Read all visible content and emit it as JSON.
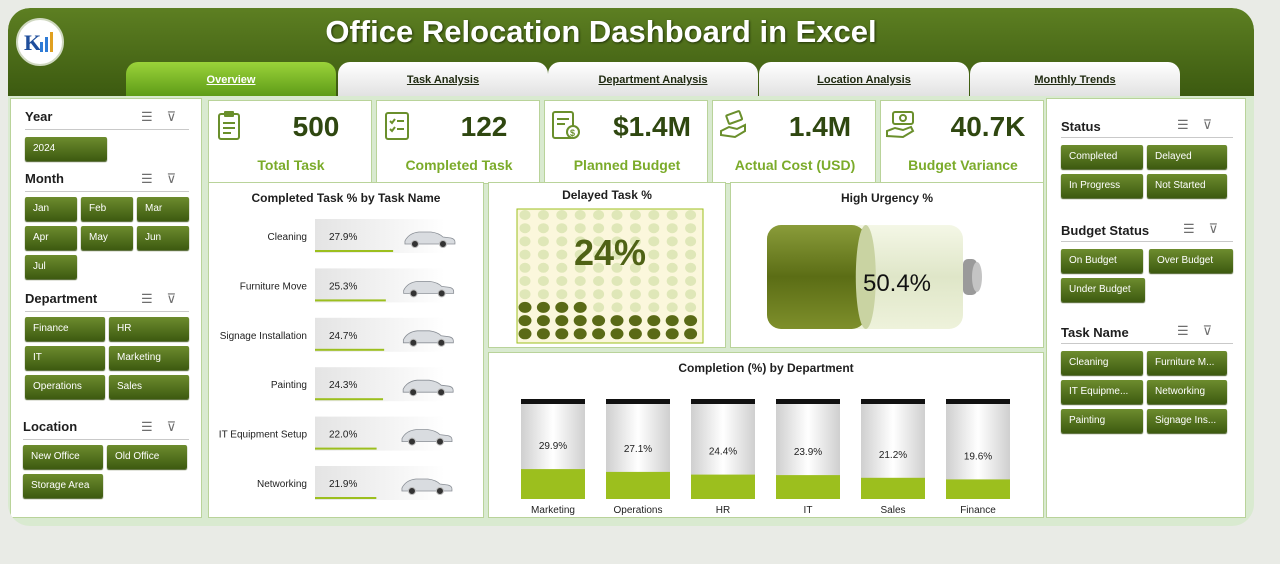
{
  "app": {
    "title": "Office Relocation Dashboard in Excel"
  },
  "tabs": [
    "Overview",
    "Task Analysis",
    "Department Analysis",
    "Location Analysis",
    "Monthly Trends"
  ],
  "left_slicers": {
    "year": {
      "title": "Year",
      "items": [
        "2024"
      ]
    },
    "month": {
      "title": "Month",
      "items": [
        "Jan",
        "Feb",
        "Mar",
        "Apr",
        "May",
        "Jun",
        "Jul"
      ]
    },
    "department": {
      "title": "Department",
      "items": [
        "Finance",
        "HR",
        "IT",
        "Marketing",
        "Operations",
        "Sales"
      ]
    },
    "location": {
      "title": "Location",
      "items": [
        "New Office",
        "Old Office",
        "Storage Area"
      ]
    }
  },
  "right_slicers": {
    "status": {
      "title": "Status",
      "items": [
        "Completed",
        "Delayed",
        "In Progress",
        "Not Started"
      ]
    },
    "budget_status": {
      "title": "Budget Status",
      "items": [
        "On Budget",
        "Over Budget",
        "Under Budget"
      ]
    },
    "task_name": {
      "title": "Task Name",
      "items": [
        "Cleaning",
        "Furniture M...",
        "IT Equipme...",
        "Networking",
        "Painting",
        "Signage Ins..."
      ]
    }
  },
  "kpis": [
    {
      "value": "500",
      "label": "Total Task",
      "icon": "clipboard-icon"
    },
    {
      "value": "122",
      "label": "Completed Task",
      "icon": "checklist-icon"
    },
    {
      "value": "$1.4M",
      "label": "Planned Budget",
      "icon": "plan-icon"
    },
    {
      "value": "1.4M",
      "label": "Actual Cost (USD)",
      "icon": "cash-hand-icon"
    },
    {
      "value": "40.7K",
      "label": "Budget Variance",
      "icon": "money-hand-icon"
    }
  ],
  "colors": {
    "accent_dark": "#3c5a10",
    "accent": "#5e7d1e",
    "kpi_label": "#7bab2a",
    "bar": "#9cbf1e"
  },
  "chart_data": [
    {
      "type": "bar",
      "title": "Completed Task % by Task Name",
      "categories": [
        "Cleaning",
        "Furniture Move",
        "Signage Installation",
        "Painting",
        "IT Equipment Setup",
        "Networking"
      ],
      "values": [
        27.9,
        25.3,
        24.7,
        24.3,
        22.0,
        21.9
      ],
      "labels": [
        "27.9%",
        "25.3%",
        "24.7%",
        "24.3%",
        "22.0%",
        "21.9%"
      ],
      "xlabel": "",
      "ylabel": "",
      "xlim": [
        0,
        100
      ]
    },
    {
      "type": "waffle",
      "title": "Delayed Task %",
      "value": 24,
      "label": "24%"
    },
    {
      "type": "gauge",
      "title": "High Urgency %",
      "value": 50.4,
      "label": "50.4%"
    },
    {
      "type": "bar",
      "title": "Completion (%) by Department",
      "categories": [
        "Marketing",
        "Operations",
        "HR",
        "IT",
        "Sales",
        "Finance"
      ],
      "values": [
        29.9,
        27.1,
        24.4,
        23.9,
        21.2,
        19.6
      ],
      "labels": [
        "29.9%",
        "27.1%",
        "24.4%",
        "23.9%",
        "21.2%",
        "19.6%"
      ],
      "ylim": [
        0,
        100
      ]
    }
  ]
}
